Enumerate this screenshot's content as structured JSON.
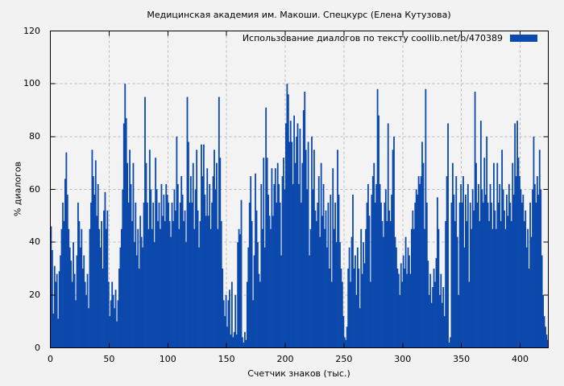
{
  "title": "Медицинская академия им. Макоши. Спецкурс (Елена Кутузова)",
  "legend": {
    "label": "Использование диалогов по тексту  coollib.net/b/470389",
    "swatch_color": "#0c49ac"
  },
  "colors": {
    "background": "#f2f2f2",
    "plot_background": "#f3f3f3",
    "grid": "#b8b8b8",
    "border": "#000000",
    "bar": "#0c49ac"
  },
  "chart_data": {
    "type": "bar",
    "title": "Медицинская академия им. Макоши. Спецкурс (Елена Кутузова)",
    "xlabel": "Счетчик знаков (тыс.)",
    "ylabel": "% диалогов",
    "legend_entries": [
      "Использование диалогов по тексту  coollib.net/b/470389"
    ],
    "legend_position": "top-right-inside",
    "grid": true,
    "xlim": [
      0,
      424
    ],
    "ylim": [
      0,
      120
    ],
    "x_ticks": [
      0,
      50,
      100,
      150,
      200,
      250,
      300,
      350,
      400
    ],
    "y_ticks": [
      0,
      20,
      40,
      60,
      80,
      100,
      120
    ],
    "bar_color": "#0c49ac",
    "x_start": 0,
    "x_step": 1,
    "values": [
      46,
      37,
      13,
      31,
      25,
      28,
      11,
      29,
      35,
      45,
      55,
      48,
      64,
      74,
      58,
      45,
      38,
      33,
      25,
      40,
      28,
      18,
      35,
      55,
      48,
      38,
      45,
      30,
      35,
      25,
      20,
      28,
      15,
      45,
      55,
      75,
      65,
      58,
      71,
      50,
      62,
      45,
      38,
      48,
      30,
      52,
      59,
      45,
      52,
      25,
      12,
      18,
      25,
      20,
      15,
      22,
      10,
      18,
      30,
      38,
      45,
      60,
      85,
      100,
      87,
      70,
      55,
      75,
      62,
      48,
      70,
      40,
      55,
      35,
      45,
      30,
      50,
      42,
      38,
      55,
      95,
      70,
      55,
      45,
      75,
      60,
      45,
      55,
      40,
      72,
      60,
      48,
      55,
      45,
      62,
      50,
      58,
      48,
      62,
      58,
      55,
      48,
      42,
      55,
      48,
      60,
      52,
      80,
      62,
      45,
      55,
      65,
      58,
      48,
      52,
      40,
      95,
      78,
      55,
      65,
      55,
      70,
      45,
      60,
      75,
      52,
      38,
      48,
      77,
      65,
      77,
      58,
      50,
      68,
      50,
      62,
      45,
      55,
      65,
      75,
      60,
      70,
      45,
      95,
      72,
      48,
      30,
      18,
      12,
      20,
      8,
      18,
      22,
      5,
      25,
      4,
      6,
      20,
      5,
      40,
      45,
      43,
      56,
      4,
      2,
      6,
      3,
      25,
      38,
      55,
      65,
      48,
      18,
      35,
      66,
      52,
      40,
      28,
      25,
      62,
      45,
      72,
      38,
      91,
      72,
      58,
      50,
      45,
      68,
      50,
      62,
      68,
      55,
      70,
      62,
      55,
      35,
      65,
      72,
      60,
      85,
      100,
      96,
      78,
      86,
      78,
      62,
      88,
      70,
      80,
      85,
      62,
      83,
      55,
      70,
      90,
      97,
      75,
      60,
      78,
      35,
      45,
      80,
      60,
      75,
      52,
      48,
      55,
      65,
      42,
      70,
      50,
      62,
      45,
      52,
      38,
      55,
      30,
      58,
      25,
      68,
      45,
      55,
      40,
      75,
      58,
      40,
      30,
      25,
      12,
      4,
      3,
      8,
      30,
      38,
      25,
      42,
      58,
      30,
      35,
      20,
      38,
      30,
      15,
      45,
      28,
      40,
      32,
      45,
      55,
      62,
      50,
      25,
      58,
      65,
      70,
      55,
      62,
      98,
      88,
      62,
      55,
      48,
      42,
      55,
      60,
      48,
      85,
      52,
      48,
      58,
      75,
      80,
      42,
      38,
      30,
      28,
      20,
      32,
      25,
      35,
      30,
      42,
      28,
      38,
      35,
      28,
      45,
      52,
      45,
      55,
      60,
      58,
      65,
      62,
      65,
      78,
      70,
      45,
      98,
      55,
      33,
      20,
      28,
      17,
      23,
      30,
      25,
      34,
      57,
      45,
      20,
      28,
      17,
      23,
      12,
      48,
      65,
      85,
      2,
      4,
      55,
      70,
      58,
      48,
      65,
      42,
      20,
      55,
      62,
      55,
      65,
      38,
      58,
      48,
      62,
      25,
      55,
      45,
      60,
      52,
      97,
      70,
      55,
      62,
      48,
      86,
      60,
      55,
      72,
      58,
      80,
      55,
      48,
      62,
      55,
      45,
      70,
      52,
      45,
      70,
      55,
      62,
      48,
      75,
      60,
      52,
      45,
      58,
      50,
      62,
      55,
      48,
      70,
      58,
      85,
      65,
      86,
      72,
      65,
      60,
      55,
      58,
      48,
      52,
      38,
      45,
      30,
      55,
      42,
      60,
      80,
      62,
      55,
      65,
      58,
      75,
      60,
      35,
      20,
      12,
      8,
      5,
      3
    ]
  }
}
